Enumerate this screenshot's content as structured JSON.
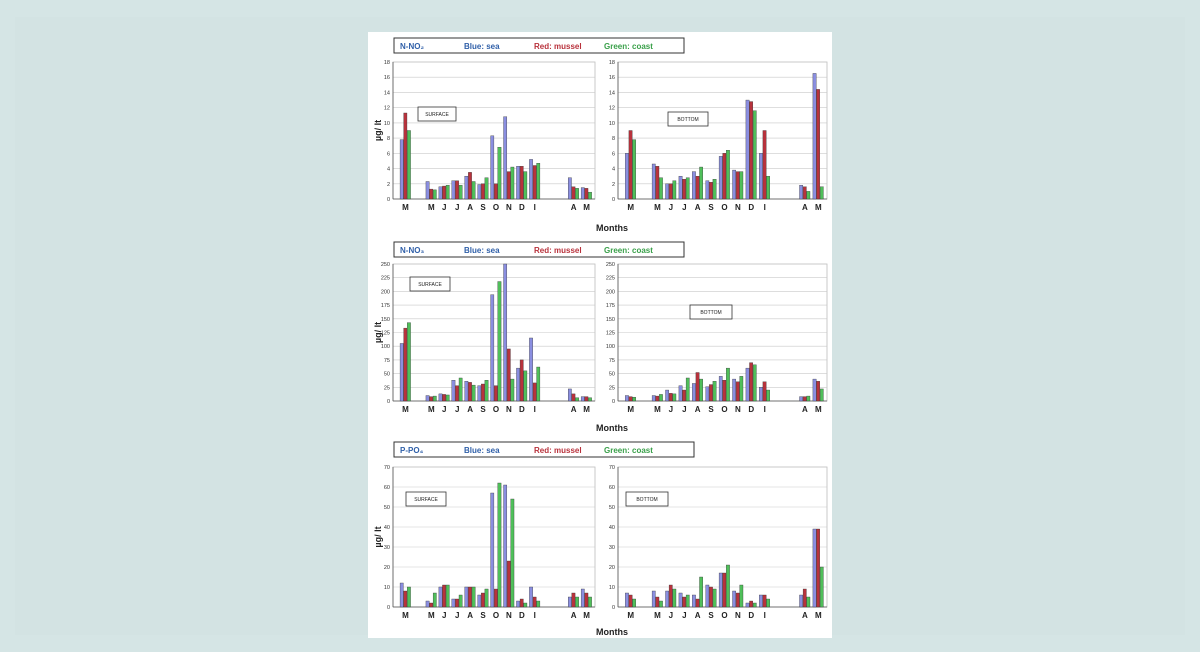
{
  "colors": {
    "sea": "#8a8ee0",
    "mussel": "#b8323c",
    "coast": "#4fbf5a",
    "grid": "#c9c9c9",
    "axis": "#555555"
  },
  "ylabel": "µg/ lt",
  "xlabel": "Months",
  "month_ticks": [
    "M",
    "",
    "M",
    "J",
    "J",
    "A",
    "S",
    "O",
    "N",
    "D",
    "I",
    "",
    "",
    "A",
    "M"
  ],
  "charts": [
    {
      "legend": {
        "param": "N-NO₂",
        "sea": "Blue: sea",
        "mussel": "Red: mussel",
        "coast": "Green: coast"
      },
      "surface_label": "SURFACE",
      "bottom_label": "BOTTOM",
      "surface_yticks": [
        "0",
        "2",
        "4",
        "6",
        "8",
        "10",
        "12",
        "14",
        "16",
        "18"
      ],
      "bottom_yticks": [
        "0",
        "2",
        "4",
        "6",
        "8",
        "10",
        "12",
        "14",
        "16",
        "18"
      ]
    },
    {
      "legend": {
        "param": "N-NO₃",
        "sea": "Blue: sea",
        "mussel": "Red: mussel",
        "coast": "Green: coast"
      },
      "surface_label": "SURFACE",
      "bottom_label": "BOTTOM",
      "surface_yticks": [
        "0",
        "25",
        "50",
        "75",
        "100",
        "125",
        "150",
        "175",
        "200",
        "225",
        "250"
      ],
      "bottom_yticks": [
        "0",
        "25",
        "50",
        "75",
        "100",
        "125",
        "150",
        "175",
        "200",
        "225",
        "250"
      ]
    },
    {
      "legend": {
        "param": "P-PO₄",
        "sea": "Blue: sea",
        "mussel": "Red: mussel",
        "coast": "Green: coast"
      },
      "surface_label": "SURFACE",
      "bottom_label": "BOTTOM",
      "surface_yticks": [
        "0",
        "10",
        "20",
        "30",
        "40",
        "50",
        "60",
        "70"
      ],
      "bottom_yticks": [
        "0",
        "10",
        "20",
        "30",
        "40",
        "50",
        "60",
        "70"
      ]
    }
  ],
  "chart_data": [
    {
      "type": "bar",
      "parameter": "N-NO₂",
      "depth": "SURFACE",
      "ylim": [
        0,
        18
      ],
      "categories": [
        "M",
        "",
        "M",
        "J",
        "J",
        "A",
        "S",
        "O",
        "N",
        "D",
        "I",
        "",
        "",
        "A",
        "M"
      ],
      "series": [
        {
          "name": "sea",
          "values": [
            7.8,
            null,
            2.3,
            1.6,
            2.4,
            3.0,
            1.9,
            8.3,
            10.8,
            4.3,
            5.2,
            null,
            null,
            2.8,
            1.5
          ]
        },
        {
          "name": "mussel",
          "values": [
            11.3,
            null,
            1.3,
            1.7,
            2.4,
            3.5,
            2.0,
            2.0,
            3.6,
            4.3,
            4.4,
            null,
            null,
            1.6,
            1.4
          ]
        },
        {
          "name": "coast",
          "values": [
            9.0,
            null,
            1.2,
            1.8,
            1.8,
            2.3,
            2.8,
            6.8,
            4.2,
            3.6,
            4.7,
            null,
            null,
            1.4,
            0.9
          ]
        }
      ]
    },
    {
      "type": "bar",
      "parameter": "N-NO₂",
      "depth": "BOTTOM",
      "ylim": [
        0,
        18
      ],
      "categories": [
        "M",
        "",
        "M",
        "J",
        "J",
        "A",
        "S",
        "O",
        "N",
        "D",
        "I",
        "",
        "",
        "A",
        "M"
      ],
      "series": [
        {
          "name": "sea",
          "values": [
            6.0,
            null,
            4.6,
            2.0,
            3.0,
            3.6,
            2.4,
            5.6,
            3.8,
            13.0,
            6.0,
            null,
            null,
            1.8,
            16.5
          ]
        },
        {
          "name": "mussel",
          "values": [
            9.0,
            null,
            4.3,
            2.0,
            2.6,
            3.0,
            2.2,
            6.0,
            3.6,
            12.8,
            9.0,
            null,
            null,
            1.6,
            14.4
          ]
        },
        {
          "name": "coast",
          "values": [
            7.8,
            null,
            2.8,
            2.4,
            2.8,
            4.2,
            2.6,
            6.4,
            3.6,
            11.6,
            3.0,
            null,
            null,
            1.0,
            1.6
          ]
        }
      ]
    },
    {
      "type": "bar",
      "parameter": "N-NO₃",
      "depth": "SURFACE",
      "ylim": [
        0,
        250
      ],
      "categories": [
        "M",
        "",
        "M",
        "J",
        "J",
        "A",
        "S",
        "O",
        "N",
        "D",
        "I",
        "",
        "",
        "A",
        "M"
      ],
      "series": [
        {
          "name": "sea",
          "values": [
            105,
            null,
            10,
            13,
            38,
            36,
            28,
            194,
            250,
            60,
            115,
            null,
            null,
            22,
            8
          ]
        },
        {
          "name": "mussel",
          "values": [
            133,
            null,
            8,
            12,
            28,
            34,
            31,
            28,
            95,
            75,
            33,
            null,
            null,
            13,
            8
          ]
        },
        {
          "name": "coast",
          "values": [
            143,
            null,
            9,
            11,
            42,
            29,
            38,
            218,
            40,
            55,
            62,
            null,
            null,
            6,
            6
          ]
        }
      ]
    },
    {
      "type": "bar",
      "parameter": "N-NO₃",
      "depth": "BOTTOM",
      "ylim": [
        0,
        250
      ],
      "categories": [
        "M",
        "",
        "M",
        "J",
        "J",
        "A",
        "S",
        "O",
        "N",
        "D",
        "I",
        "",
        "",
        "A",
        "M"
      ],
      "series": [
        {
          "name": "sea",
          "values": [
            10,
            null,
            10,
            20,
            28,
            32,
            26,
            45,
            40,
            60,
            25,
            null,
            null,
            8,
            40
          ]
        },
        {
          "name": "mussel",
          "values": [
            8,
            null,
            9,
            14,
            20,
            52,
            30,
            38,
            35,
            70,
            35,
            null,
            null,
            8,
            36
          ]
        },
        {
          "name": "coast",
          "values": [
            7,
            null,
            12,
            13,
            42,
            40,
            36,
            60,
            45,
            66,
            20,
            null,
            null,
            9,
            22
          ]
        }
      ]
    },
    {
      "type": "bar",
      "parameter": "P-PO₄",
      "depth": "SURFACE",
      "ylim": [
        0,
        70
      ],
      "categories": [
        "M",
        "",
        "M",
        "J",
        "J",
        "A",
        "S",
        "O",
        "N",
        "D",
        "I",
        "",
        "",
        "A",
        "M"
      ],
      "series": [
        {
          "name": "sea",
          "values": [
            12,
            null,
            3,
            10,
            4,
            10,
            6,
            57,
            61,
            3,
            10,
            null,
            null,
            5,
            9
          ]
        },
        {
          "name": "mussel",
          "values": [
            8,
            null,
            2,
            11,
            4,
            10,
            7,
            9,
            23,
            4,
            5,
            null,
            null,
            7,
            7
          ]
        },
        {
          "name": "coast",
          "values": [
            10,
            null,
            7,
            11,
            6,
            10,
            9,
            62,
            54,
            2,
            3,
            null,
            null,
            5,
            5
          ]
        }
      ]
    },
    {
      "type": "bar",
      "parameter": "P-PO₄",
      "depth": "BOTTOM",
      "ylim": [
        0,
        70
      ],
      "categories": [
        "M",
        "",
        "M",
        "J",
        "J",
        "A",
        "S",
        "O",
        "N",
        "D",
        "I",
        "",
        "",
        "A",
        "M"
      ],
      "series": [
        {
          "name": "sea",
          "values": [
            7,
            null,
            8,
            8,
            7,
            6,
            11,
            17,
            8,
            2,
            6,
            null,
            null,
            6,
            39
          ]
        },
        {
          "name": "mussel",
          "values": [
            6,
            null,
            5,
            11,
            5,
            4,
            10,
            17,
            7,
            3,
            6,
            null,
            null,
            9,
            39
          ]
        },
        {
          "name": "coast",
          "values": [
            4,
            null,
            3,
            9,
            6,
            15,
            9,
            21,
            11,
            2,
            4,
            null,
            null,
            5,
            20
          ]
        }
      ]
    }
  ]
}
